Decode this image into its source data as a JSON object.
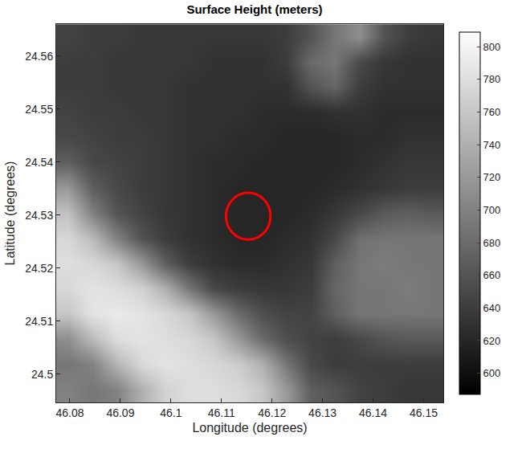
{
  "chart_data": {
    "type": "heatmap",
    "title": "Surface Height (meters)",
    "xlabel": "Longitude (degrees)",
    "ylabel": "Latitude (degrees)",
    "color": "gray",
    "x": [
      46.0797,
      46.0845,
      46.0893,
      46.0941,
      46.0989,
      46.1037,
      46.1085,
      46.1133,
      46.1181,
      46.1229,
      46.1277,
      46.1325,
      46.1373,
      46.1421,
      46.1469,
      46.1517
    ],
    "y": [
      24.4971,
      24.5019,
      24.5066,
      24.5114,
      24.5161,
      24.5209,
      24.5256,
      24.5304,
      24.5351,
      24.5399,
      24.5446,
      24.5494,
      24.5541,
      24.5589,
      24.5636
    ],
    "z": [
      [
        700,
        690,
        700,
        740,
        770,
        780,
        780,
        775,
        760,
        720,
        670,
        660,
        645,
        640,
        635,
        635
      ],
      [
        690,
        700,
        745,
        775,
        785,
        780,
        775,
        765,
        740,
        690,
        650,
        640,
        640,
        640,
        640,
        640
      ],
      [
        710,
        750,
        780,
        785,
        780,
        775,
        760,
        720,
        680,
        655,
        645,
        640,
        650,
        660,
        665,
        665
      ],
      [
        760,
        785,
        790,
        785,
        775,
        760,
        720,
        680,
        655,
        645,
        645,
        670,
        690,
        690,
        690,
        690
      ],
      [
        775,
        785,
        780,
        770,
        740,
        690,
        650,
        640,
        635,
        635,
        640,
        675,
        690,
        690,
        695,
        690
      ],
      [
        780,
        775,
        760,
        720,
        670,
        640,
        630,
        625,
        625,
        630,
        635,
        670,
        690,
        695,
        690,
        690
      ],
      [
        775,
        750,
        700,
        660,
        640,
        630,
        625,
        620,
        620,
        625,
        630,
        650,
        685,
        690,
        690,
        690
      ],
      [
        755,
        700,
        660,
        645,
        635,
        630,
        625,
        620,
        620,
        620,
        625,
        635,
        650,
        665,
        670,
        665
      ],
      [
        720,
        670,
        650,
        640,
        635,
        630,
        625,
        620,
        620,
        620,
        620,
        625,
        630,
        635,
        640,
        640
      ],
      [
        670,
        650,
        645,
        640,
        635,
        630,
        625,
        625,
        620,
        620,
        620,
        620,
        625,
        630,
        635,
        635
      ],
      [
        650,
        645,
        640,
        640,
        635,
        630,
        630,
        625,
        625,
        620,
        620,
        620,
        625,
        625,
        630,
        630
      ],
      [
        645,
        640,
        640,
        635,
        635,
        630,
        630,
        630,
        625,
        625,
        625,
        630,
        630,
        625,
        625,
        625
      ],
      [
        640,
        640,
        635,
        635,
        635,
        630,
        630,
        630,
        630,
        630,
        660,
        675,
        640,
        630,
        630,
        630
      ],
      [
        640,
        640,
        635,
        635,
        635,
        635,
        630,
        630,
        630,
        640,
        680,
        690,
        650,
        635,
        630,
        630
      ],
      [
        645,
        640,
        640,
        635,
        635,
        635,
        635,
        635,
        635,
        640,
        660,
        690,
        710,
        660,
        640,
        635
      ]
    ],
    "xlim": [
      46.0773,
      46.1539
    ],
    "ylim": [
      24.4947,
      24.566
    ],
    "xticks": [
      46.08,
      46.09,
      46.1,
      46.11,
      46.12,
      46.13,
      46.14,
      46.15
    ],
    "yticks": [
      24.5,
      24.51,
      24.52,
      24.53,
      24.54,
      24.55,
      24.56
    ],
    "colorbar": {
      "range": [
        587,
        809
      ],
      "ticks": [
        600,
        620,
        640,
        660,
        680,
        700,
        720,
        740,
        760,
        780,
        800
      ]
    },
    "highlight": {
      "x": 46.1153,
      "y": 24.5298,
      "radius": 0.0044,
      "color": "red"
    }
  }
}
